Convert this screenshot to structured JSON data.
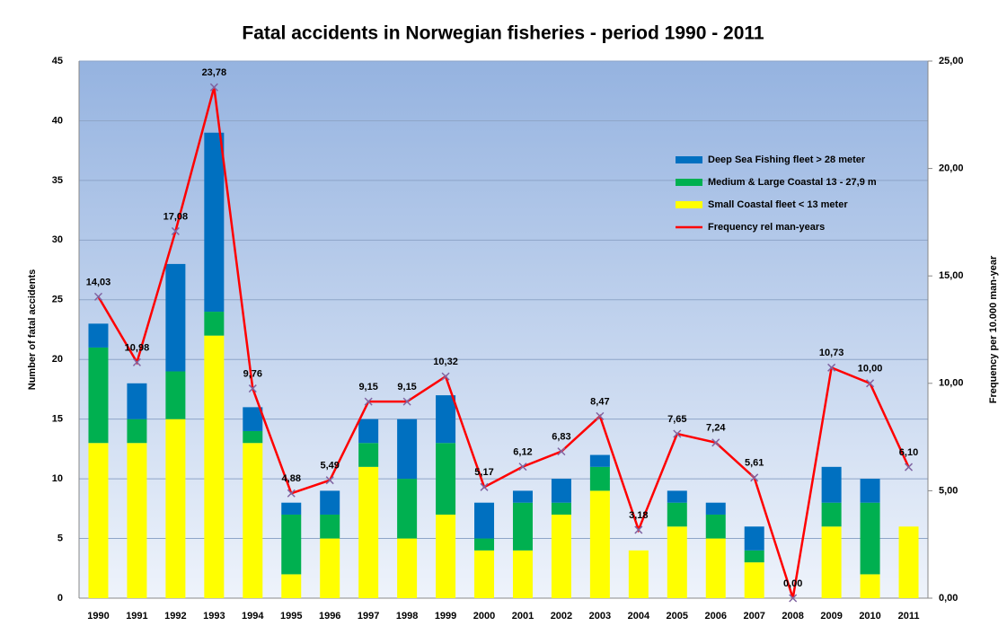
{
  "chart_data": {
    "type": "bar",
    "stacked": true,
    "title": "Fatal accidents in Norwegian fisheries - period 1990 - 2011",
    "ylabel": "Number of fatal accidents",
    "y2label": "Frequency per 10.000 man-year",
    "categories": [
      "1990",
      "1991",
      "1992",
      "1993",
      "1994",
      "1995",
      "1996",
      "1997",
      "1998",
      "1999",
      "2000",
      "2001",
      "2002",
      "2003",
      "2004",
      "2005",
      "2006",
      "2007",
      "2008",
      "2009",
      "2010",
      "2011"
    ],
    "series": [
      {
        "name": "Small Coastal fleet < 13 meter",
        "color": "#ffff00",
        "values": [
          13,
          13,
          15,
          22,
          13,
          2,
          5,
          11,
          5,
          7,
          4,
          4,
          7,
          9,
          4,
          6,
          5,
          3,
          0,
          6,
          2,
          6
        ]
      },
      {
        "name": "Medium & Large Coastal 13 - 27,9 m",
        "color": "#00b050",
        "values": [
          8,
          2,
          4,
          2,
          1,
          5,
          2,
          2,
          5,
          6,
          1,
          4,
          1,
          2,
          0,
          2,
          2,
          1,
          0,
          2,
          6,
          0
        ]
      },
      {
        "name": "Deep Sea Fishing fleet > 28 meter",
        "color": "#0070c0",
        "values": [
          2,
          3,
          9,
          15,
          2,
          1,
          2,
          2,
          5,
          4,
          3,
          1,
          2,
          1,
          0,
          1,
          1,
          2,
          0,
          3,
          2,
          0
        ]
      },
      {
        "name": "Frequency rel man-years",
        "type": "line",
        "axis": "y2",
        "color": "#ff0000",
        "marker_color": "#8064a2",
        "values": [
          14.03,
          10.98,
          17.08,
          23.78,
          9.76,
          4.88,
          5.49,
          9.15,
          9.15,
          10.32,
          5.17,
          6.12,
          6.83,
          8.47,
          3.18,
          7.65,
          7.24,
          5.61,
          0.0,
          10.73,
          10.0,
          6.1
        ],
        "value_labels": [
          "14,03",
          "10,98",
          "17,08",
          "23,78",
          "9,76",
          "4,88",
          "5,49",
          "9,15",
          "9,15",
          "10,32",
          "5,17",
          "6,12",
          "6,83",
          "8,47",
          "3,18",
          "7,65",
          "7,24",
          "5,61",
          "0,00",
          "10,73",
          "10,00",
          "6,10"
        ]
      }
    ],
    "ylim": [
      0,
      45
    ],
    "yticks": [
      0,
      5,
      10,
      15,
      20,
      25,
      30,
      35,
      40,
      45
    ],
    "y2lim": [
      0,
      25
    ],
    "y2ticks": [
      {
        "value": 0,
        "label": "0,00"
      },
      {
        "value": 5,
        "label": "5,00"
      },
      {
        "value": 10,
        "label": "10,00"
      },
      {
        "value": 15,
        "label": "15,00"
      },
      {
        "value": 20,
        "label": "20,00"
      },
      {
        "value": 25,
        "label": "25,00"
      }
    ],
    "grid": true,
    "legend": "upper right"
  }
}
